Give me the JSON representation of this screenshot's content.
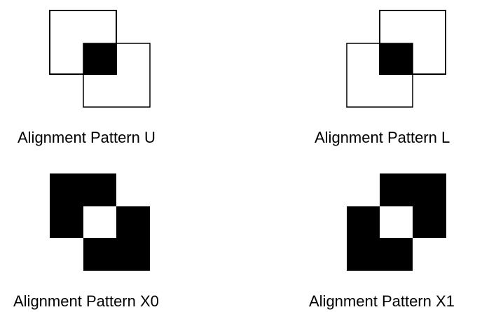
{
  "figure": {
    "colors": {
      "foreground": "#000000",
      "background": "#ffffff"
    },
    "patterns": [
      {
        "id": "U",
        "caption": "Alignment Pattern U",
        "style": "outline-overlap",
        "orientation": "top-left-to-bottom-right"
      },
      {
        "id": "L",
        "caption": "Alignment Pattern L",
        "style": "outline-overlap",
        "orientation": "top-right-to-bottom-left"
      },
      {
        "id": "X0",
        "caption": "Alignment Pattern X0",
        "style": "solid-checker",
        "orientation": "top-left-to-bottom-right"
      },
      {
        "id": "X1",
        "caption": "Alignment Pattern X1",
        "style": "solid-checker",
        "orientation": "top-right-to-bottom-left"
      }
    ]
  }
}
